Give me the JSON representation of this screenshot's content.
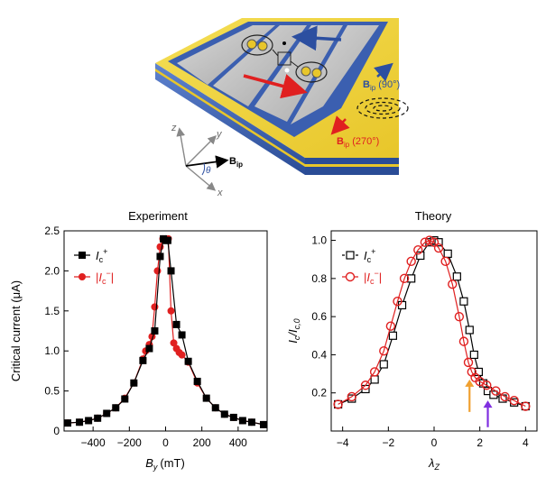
{
  "diagram": {
    "field_label_main": "B",
    "field_label_main_sub": "ip",
    "field_label_90": "(90°)",
    "field_label_270": "(270°)",
    "axis_x": "x",
    "axis_y": "y",
    "axis_z": "z",
    "angle": "θ",
    "colors": {
      "gold": "#f2d640",
      "blue_edge": "#3b5fb0",
      "slab": "#c9c9c9",
      "arrow_red": "#e02020",
      "arrow_blue": "#2c4fa0"
    }
  },
  "chart_data": [
    {
      "type": "line",
      "title": "Experiment",
      "xlabel": "B",
      "xlabel_sub": "y",
      "xlabel_unit": "(mT)",
      "ylabel": "Critical current (μA)",
      "xlim": [
        -560,
        560
      ],
      "ylim": [
        0,
        2.5
      ],
      "xticks": [
        -400,
        -200,
        0,
        200,
        400
      ],
      "yticks": [
        0,
        0.5,
        1.0,
        1.5,
        2.0,
        2.5
      ],
      "ytick_labels": [
        "0",
        "0.5",
        "1.0",
        "1.5",
        "2.0",
        "2.5"
      ],
      "grid": false,
      "legend": "top-left",
      "series": [
        {
          "name": "Ic+",
          "name_main": "I",
          "name_sub": "c",
          "name_sup": "+",
          "marker": "square",
          "color": "#000000",
          "x": [
            -540,
            -475,
            -425,
            -375,
            -325,
            -275,
            -225,
            -175,
            -125,
            -90,
            -60,
            -30,
            -12,
            0,
            12,
            30,
            60,
            90,
            125,
            175,
            225,
            275,
            325,
            375,
            425,
            475,
            540
          ],
          "y": [
            0.1,
            0.11,
            0.13,
            0.16,
            0.22,
            0.29,
            0.4,
            0.6,
            0.88,
            1.03,
            1.25,
            2.18,
            2.4,
            2.38,
            2.38,
            2.0,
            1.33,
            1.2,
            0.87,
            0.62,
            0.41,
            0.29,
            0.21,
            0.17,
            0.13,
            0.11,
            0.08
          ]
        },
        {
          "name": "|Ic−|",
          "name_main": "I",
          "name_sub": "c",
          "name_sup": "−",
          "marker": "circle",
          "color": "#e02020",
          "x": [
            -540,
            -475,
            -425,
            -375,
            -325,
            -275,
            -225,
            -175,
            -125,
            -110,
            -90,
            -75,
            -60,
            -45,
            -30,
            -15,
            0,
            15,
            30,
            45,
            60,
            75,
            90,
            125,
            175,
            225,
            275,
            325,
            375,
            425,
            475,
            540
          ],
          "y": [
            0.1,
            0.11,
            0.13,
            0.16,
            0.22,
            0.29,
            0.41,
            0.6,
            0.9,
            1.0,
            1.08,
            1.18,
            1.55,
            2.0,
            2.3,
            2.4,
            2.4,
            2.4,
            1.5,
            1.1,
            1.03,
            0.98,
            0.95,
            0.86,
            0.6,
            0.41,
            0.29,
            0.21,
            0.17,
            0.13,
            0.11,
            0.08
          ]
        }
      ]
    },
    {
      "type": "line",
      "title": "Theory",
      "xlabel": "λ",
      "xlabel_sub": "Z",
      "ylabel": "I",
      "ylabel_sub": "c",
      "ylabel_tail": "/I",
      "ylabel_tail_sub": "c,0",
      "xlim": [
        -4.5,
        4.5
      ],
      "ylim": [
        0,
        1.05
      ],
      "xticks": [
        -4,
        -2,
        0,
        2,
        4
      ],
      "yticks": [
        0.2,
        0.4,
        0.6,
        0.8,
        1.0
      ],
      "ytick_labels": [
        "0.2",
        "0.4",
        "0.6",
        "0.8",
        "1.0"
      ],
      "grid": false,
      "legend": "top-left",
      "annotations": [
        {
          "type": "arrow",
          "color": "#f0a030",
          "x": 1.55,
          "y_from": 0.1,
          "y_to": 0.27
        },
        {
          "type": "arrow",
          "color": "#8030e0",
          "x": 2.35,
          "y_from": 0.02,
          "y_to": 0.16
        }
      ],
      "series": [
        {
          "name": "Ic+",
          "name_main": "I",
          "name_sub": "c",
          "name_sup": "+",
          "marker": "open-square",
          "color": "#000000",
          "x": [
            -4.2,
            -3.6,
            -3.0,
            -2.6,
            -2.2,
            -1.8,
            -1.4,
            -1.0,
            -0.6,
            -0.2,
            0.0,
            0.2,
            0.6,
            1.0,
            1.3,
            1.55,
            1.75,
            1.95,
            2.15,
            2.35,
            2.6,
            3.0,
            3.5,
            4.0
          ],
          "y": [
            0.14,
            0.17,
            0.22,
            0.27,
            0.35,
            0.5,
            0.66,
            0.8,
            0.92,
            0.99,
            1.0,
            0.99,
            0.93,
            0.81,
            0.68,
            0.53,
            0.4,
            0.31,
            0.25,
            0.21,
            0.19,
            0.17,
            0.15,
            0.13
          ]
        },
        {
          "name": "|Ic−|",
          "name_main": "I",
          "name_sub": "c",
          "name_sup": "−",
          "marker": "open-circle",
          "color": "#e02020",
          "x": [
            -4.2,
            -3.6,
            -3.0,
            -2.6,
            -2.2,
            -1.9,
            -1.6,
            -1.3,
            -1.0,
            -0.7,
            -0.4,
            -0.2,
            0.0,
            0.2,
            0.5,
            0.8,
            1.1,
            1.3,
            1.5,
            1.65,
            1.8,
            2.0,
            2.3,
            2.7,
            3.1,
            3.5,
            4.0
          ],
          "y": [
            0.14,
            0.18,
            0.24,
            0.31,
            0.42,
            0.55,
            0.68,
            0.8,
            0.89,
            0.95,
            0.99,
            1.0,
            0.99,
            0.96,
            0.89,
            0.77,
            0.6,
            0.47,
            0.36,
            0.31,
            0.28,
            0.26,
            0.24,
            0.21,
            0.18,
            0.16,
            0.13
          ]
        }
      ]
    }
  ]
}
